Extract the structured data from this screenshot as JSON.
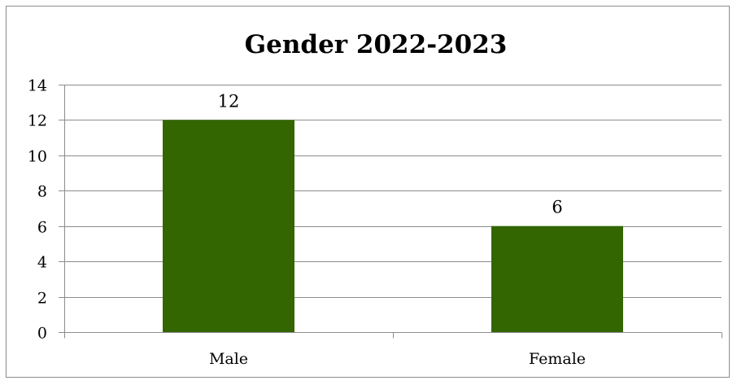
{
  "chart_data": {
    "type": "bar",
    "title": "Gender 2022-2023",
    "categories": [
      "Male",
      "Female"
    ],
    "values": [
      12,
      6
    ],
    "data_labels": [
      "12",
      "6"
    ],
    "xlabel": "",
    "ylabel": "",
    "ylim": [
      0,
      14
    ],
    "y_ticks": [
      0,
      2,
      4,
      6,
      8,
      10,
      12,
      14
    ],
    "y_tick_labels": [
      "0",
      "2",
      "4",
      "6",
      "8",
      "10",
      "12",
      "14"
    ],
    "grid": true,
    "legend": "none",
    "bar_color": "#336600"
  }
}
